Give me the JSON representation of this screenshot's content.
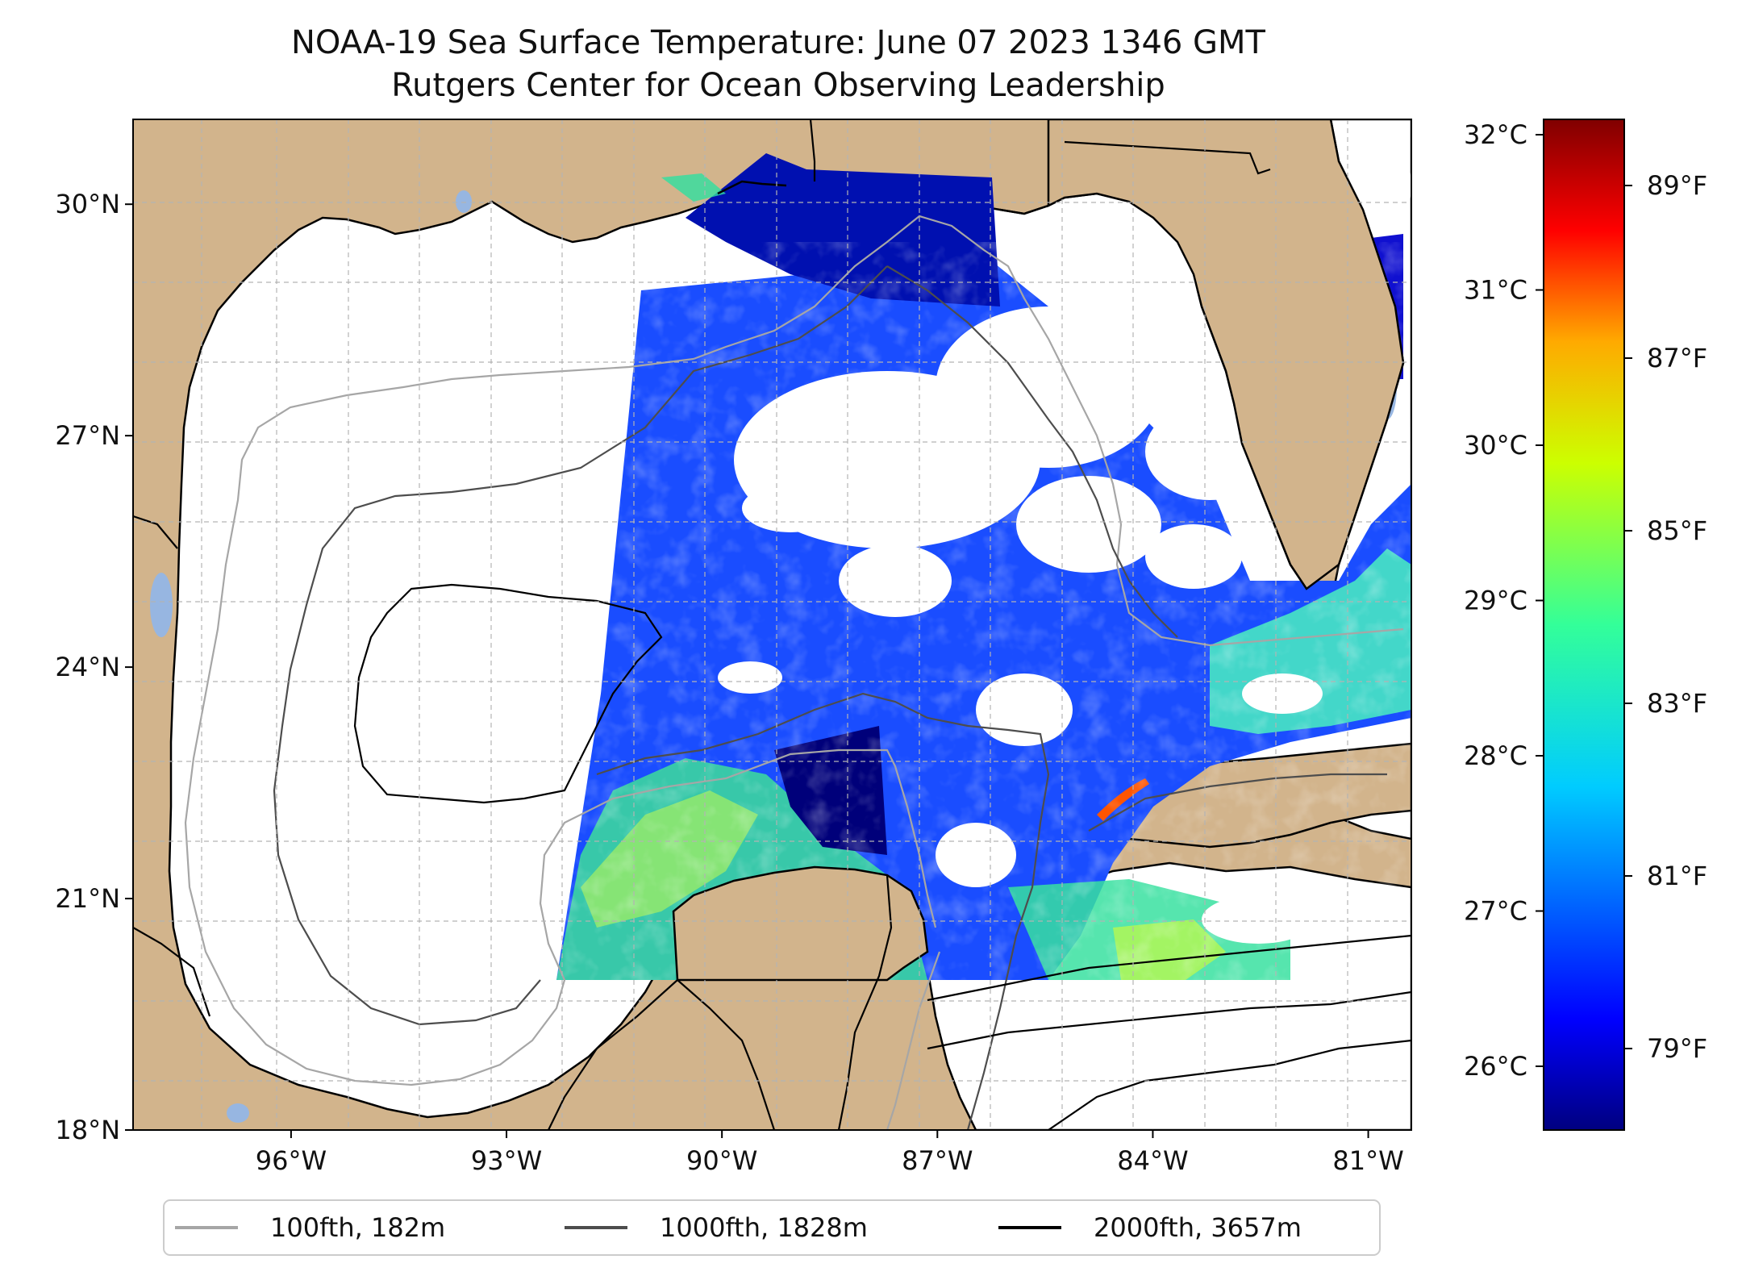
{
  "title": {
    "line1": "NOAA-19 Sea Surface Temperature: June 07 2023 1346 GMT",
    "line2": "Rutgers Center for Ocean Observing Leadership"
  },
  "map": {
    "lon_range": [
      -98.2,
      -80.4
    ],
    "lat_range": [
      18.0,
      31.1
    ],
    "land_color": "#d2b48c",
    "water_color": "#ffffff",
    "lake_color": "#97b6e1",
    "lat_ticks": [
      {
        "value": 30,
        "label": "30°N"
      },
      {
        "value": 27,
        "label": "27°N"
      },
      {
        "value": 24,
        "label": "24°N"
      },
      {
        "value": 21,
        "label": "21°N"
      },
      {
        "value": 18,
        "label": "18°N"
      }
    ],
    "lon_ticks": [
      {
        "value": -96,
        "label": "96°W"
      },
      {
        "value": -93,
        "label": "93°W"
      },
      {
        "value": -90,
        "label": "90°W"
      },
      {
        "value": -87,
        "label": "87°W"
      },
      {
        "value": -84,
        "label": "84°W"
      },
      {
        "value": -81,
        "label": "81°W"
      }
    ]
  },
  "colorbar": {
    "colormap": "jet",
    "celsius_ticks": [
      "32°C",
      "31°C",
      "30°C",
      "29°C",
      "28°C",
      "27°C",
      "26°C"
    ],
    "fahrenheit_ticks": [
      "89°F",
      "87°F",
      "85°F",
      "83°F",
      "81°F",
      "79°F"
    ]
  },
  "legend": {
    "items": [
      {
        "label": "100fth, 182m",
        "color": "#a6a6a6"
      },
      {
        "label": "1000fth, 1828m",
        "color": "#4d4d4d"
      },
      {
        "label": "2000fth, 3657m",
        "color": "#000000"
      }
    ]
  }
}
